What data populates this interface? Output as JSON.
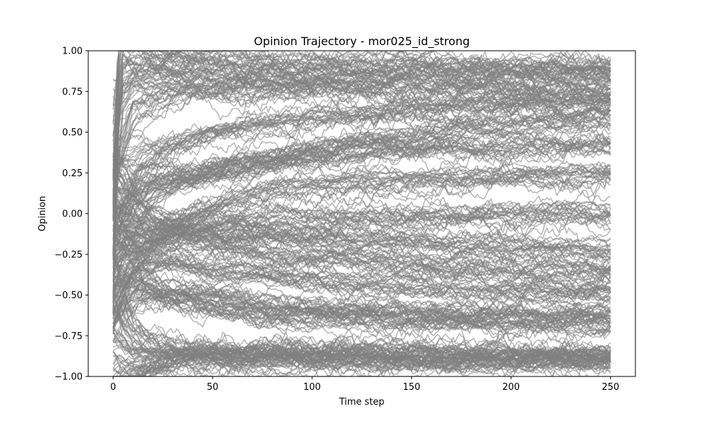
{
  "chart_data": {
    "type": "line",
    "title": "Opinion Trajectory - mor025_id_strong",
    "xlabel": "Time step",
    "ylabel": "Opinion",
    "xlim": [
      -12.5,
      262.5
    ],
    "ylim": [
      -1.0,
      1.0
    ],
    "xticks": [
      0,
      50,
      100,
      150,
      200,
      250
    ],
    "xtick_labels": [
      "0",
      "50",
      "100",
      "150",
      "200",
      "250"
    ],
    "yticks": [
      -1.0,
      -0.75,
      -0.5,
      -0.25,
      0.0,
      0.25,
      0.5,
      0.75,
      1.0
    ],
    "ytick_labels": [
      "−1.00",
      "−0.75",
      "−0.50",
      "−0.25",
      "0.00",
      "0.25",
      "0.50",
      "0.75",
      "1.00"
    ],
    "grid": false,
    "line_color": "#7f7f7f",
    "n_steps": 250,
    "series": [
      {
        "x": [
          0,
          3,
          10,
          30,
          80,
          150,
          250
        ],
        "y": [
          -0.2,
          0.95,
          0.99,
          0.96,
          0.93,
          0.91,
          0.89
        ]
      },
      {
        "x": [
          0,
          5,
          20,
          60,
          120,
          200,
          250
        ],
        "y": [
          0.3,
          0.9,
          0.88,
          0.85,
          0.84,
          0.86,
          0.87
        ]
      },
      {
        "x": [
          0,
          10,
          40,
          100,
          180,
          250
        ],
        "y": [
          0.4,
          0.7,
          0.75,
          0.78,
          0.76,
          0.75
        ]
      },
      {
        "x": [
          0,
          15,
          50,
          100,
          180,
          250
        ],
        "y": [
          0.1,
          0.35,
          0.5,
          0.6,
          0.66,
          0.68
        ]
      },
      {
        "x": [
          0,
          20,
          60,
          120,
          200,
          250
        ],
        "y": [
          -0.1,
          0.15,
          0.3,
          0.45,
          0.55,
          0.6
        ]
      },
      {
        "x": [
          0,
          25,
          70,
          130,
          200,
          250
        ],
        "y": [
          0.2,
          0.25,
          0.3,
          0.38,
          0.42,
          0.43
        ]
      },
      {
        "x": [
          0,
          30,
          80,
          150,
          250
        ],
        "y": [
          -0.3,
          -0.05,
          0.15,
          0.22,
          0.25
        ]
      },
      {
        "x": [
          0,
          20,
          60,
          120,
          200,
          250
        ],
        "y": [
          -0.1,
          -0.08,
          -0.05,
          -0.02,
          0.0,
          0.0
        ]
      },
      {
        "x": [
          0,
          20,
          70,
          130,
          200,
          250
        ],
        "y": [
          0.05,
          -0.1,
          -0.12,
          -0.15,
          -0.2,
          -0.22
        ]
      },
      {
        "x": [
          0,
          30,
          80,
          150,
          250
        ],
        "y": [
          -0.2,
          -0.15,
          -0.25,
          -0.3,
          -0.35
        ]
      },
      {
        "x": [
          0,
          15,
          50,
          120,
          200,
          250
        ],
        "y": [
          -0.3,
          -0.28,
          -0.35,
          -0.42,
          -0.46,
          -0.47
        ]
      },
      {
        "x": [
          0,
          20,
          70,
          150,
          250
        ],
        "y": [
          -0.4,
          -0.45,
          -0.55,
          -0.6,
          -0.62
        ]
      },
      {
        "x": [
          0,
          25,
          80,
          160,
          250
        ],
        "y": [
          -0.25,
          -0.5,
          -0.62,
          -0.66,
          -0.68
        ]
      },
      {
        "x": [
          0,
          10,
          40,
          100,
          180,
          250
        ],
        "y": [
          -0.6,
          -0.8,
          -0.84,
          -0.85,
          -0.85,
          -0.86
        ]
      },
      {
        "x": [
          0,
          5,
          30,
          90,
          170,
          250
        ],
        "y": [
          -0.98,
          -0.92,
          -0.88,
          -0.87,
          -0.88,
          -0.88
        ]
      },
      {
        "x": [
          0,
          5,
          30,
          100,
          200,
          250
        ],
        "y": [
          -0.8,
          -0.9,
          -0.9,
          -0.9,
          -0.91,
          -0.91
        ]
      }
    ]
  }
}
